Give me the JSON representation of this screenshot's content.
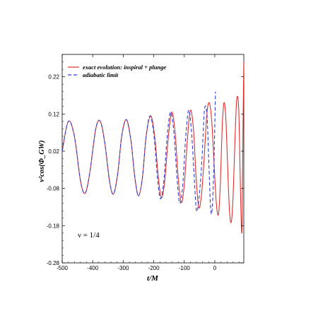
{
  "chart_data": {
    "type": "line",
    "title": "",
    "xlabel": "t/M",
    "ylabel": "ν²cos(Φ_GW)",
    "xlim": [
      -500,
      95
    ],
    "ylim": [
      -0.28,
      0.28
    ],
    "x_ticks": [
      -500,
      -400,
      -300,
      -200,
      -100,
      0
    ],
    "x_tick_labels": [
      "-500",
      "-400",
      "-300",
      "-200",
      "-100",
      "0"
    ],
    "y_ticks": [
      0.22,
      0.12,
      0.02,
      -0.08,
      -0.18,
      -0.28
    ],
    "y_tick_labels": [
      "0.22",
      "0.12",
      "0.02",
      "-0.08",
      "-0.18",
      "-0.28"
    ],
    "legend_position": "top-left",
    "annotation": "ν = 1/4",
    "series": [
      {
        "name": "exact evolution: inspiral + plunge",
        "color": "#e03030",
        "dash": "solid",
        "points": [
          [
            -500,
            0.02
          ],
          [
            -480,
            0.1
          ],
          [
            -460,
            0.06
          ],
          [
            -440,
            -0.06
          ],
          [
            -425,
            -0.093
          ],
          [
            -410,
            -0.04
          ],
          [
            -390,
            0.08
          ],
          [
            -375,
            0.1
          ],
          [
            -360,
            0.04
          ],
          [
            -345,
            -0.06
          ],
          [
            -332,
            -0.095
          ],
          [
            -318,
            -0.04
          ],
          [
            -305,
            0.06
          ],
          [
            -290,
            0.105
          ],
          [
            -275,
            0.05
          ],
          [
            -262,
            -0.05
          ],
          [
            -250,
            -0.1
          ],
          [
            -237,
            -0.05
          ],
          [
            -225,
            0.06
          ],
          [
            -210,
            0.115
          ],
          [
            -197,
            0.06
          ],
          [
            -185,
            -0.05
          ],
          [
            -175,
            -0.105
          ],
          [
            -164,
            -0.06
          ],
          [
            -152,
            0.06
          ],
          [
            -141,
            0.125
          ],
          [
            -130,
            0.07
          ],
          [
            -120,
            -0.05
          ],
          [
            -110,
            -0.118
          ],
          [
            -100,
            -0.07
          ],
          [
            -90,
            0.05
          ],
          [
            -80,
            0.13
          ],
          [
            -70,
            0.08
          ],
          [
            -62,
            -0.04
          ],
          [
            -53,
            -0.13
          ],
          [
            -44,
            -0.1
          ],
          [
            -35,
            0.0
          ],
          [
            -26,
            0.12
          ],
          [
            -18,
            0.15
          ],
          [
            -10,
            0.1
          ],
          [
            -2,
            -0.02
          ],
          [
            5,
            -0.12
          ],
          [
            12,
            -0.15
          ],
          [
            18,
            -0.07
          ],
          [
            24,
            0.08
          ],
          [
            30,
            0.15
          ],
          [
            36,
            0.11
          ],
          [
            42,
            -0.02
          ],
          [
            48,
            -0.14
          ],
          [
            54,
            -0.17
          ],
          [
            60,
            -0.1
          ],
          [
            66,
            0.05
          ],
          [
            72,
            0.16
          ],
          [
            78,
            0.14
          ],
          [
            82,
            0.0
          ],
          [
            85,
            -0.12
          ],
          [
            88,
            -0.2
          ],
          [
            90,
            -0.14
          ],
          [
            92,
            0.05
          ],
          [
            94,
            0.2
          ],
          [
            95,
            0.26
          ],
          [
            95,
            0.24
          ],
          [
            95,
            0.18
          ]
        ]
      },
      {
        "name": "adiabatic limit",
        "color": "#2f3fd8",
        "dash": "dashed",
        "points": [
          [
            -500,
            0.02
          ],
          [
            -480,
            0.1
          ],
          [
            -460,
            0.06
          ],
          [
            -440,
            -0.06
          ],
          [
            -425,
            -0.093
          ],
          [
            -410,
            -0.04
          ],
          [
            -390,
            0.08
          ],
          [
            -375,
            0.1
          ],
          [
            -360,
            0.04
          ],
          [
            -345,
            -0.06
          ],
          [
            -332,
            -0.095
          ],
          [
            -318,
            -0.04
          ],
          [
            -305,
            0.06
          ],
          [
            -290,
            0.105
          ],
          [
            -275,
            0.05
          ],
          [
            -262,
            -0.05
          ],
          [
            -250,
            -0.1
          ],
          [
            -237,
            -0.05
          ],
          [
            -225,
            0.06
          ],
          [
            -212,
            0.115
          ],
          [
            -199,
            0.06
          ],
          [
            -188,
            -0.05
          ],
          [
            -178,
            -0.108
          ],
          [
            -167,
            -0.06
          ],
          [
            -156,
            0.06
          ],
          [
            -145,
            0.125
          ],
          [
            -134,
            0.07
          ],
          [
            -124,
            -0.05
          ],
          [
            -115,
            -0.12
          ],
          [
            -105,
            -0.07
          ],
          [
            -96,
            0.05
          ],
          [
            -86,
            0.13
          ],
          [
            -77,
            0.08
          ],
          [
            -68,
            -0.04
          ],
          [
            -60,
            -0.14
          ],
          [
            -51,
            -0.1
          ],
          [
            -42,
            0.0
          ],
          [
            -34,
            0.13
          ],
          [
            -26,
            0.12
          ],
          [
            -20,
            0.0
          ],
          [
            -14,
            -0.13
          ],
          [
            -9,
            -0.14
          ],
          [
            -4,
            -0.05
          ],
          [
            0,
            0.09
          ],
          [
            2,
            0.18
          ]
        ]
      }
    ]
  }
}
